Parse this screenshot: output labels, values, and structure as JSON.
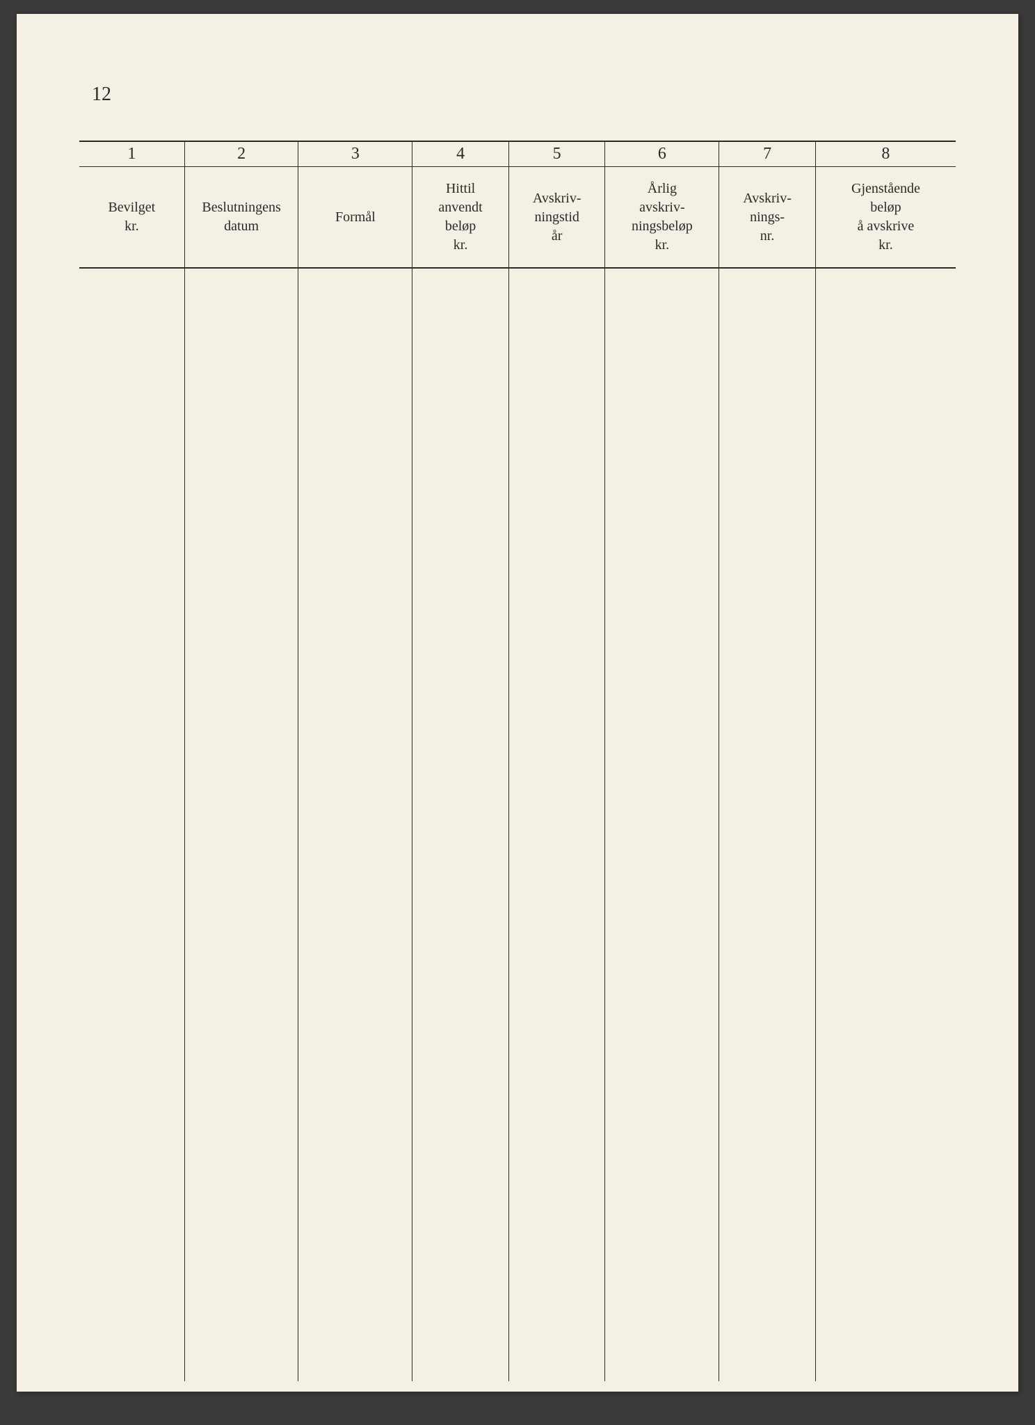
{
  "page_number": "12",
  "table": {
    "column_numbers": [
      "1",
      "2",
      "3",
      "4",
      "5",
      "6",
      "7",
      "8"
    ],
    "headers": [
      "Bevilget\nkr.",
      "Beslutningens\ndatum",
      "Formål",
      "Hittil\nanvendt\nbeløp\nkr.",
      "Avskriv-\nningstid\når",
      "Årlig\navskriv-\nningsbeløp\nkr.",
      "Avskriv-\nnings-\nnr.",
      "Gjenstående\nbeløp\nå avskrive\nkr."
    ],
    "background_color": "#f5f0e4",
    "border_color": "#2a2a2a",
    "text_color": "#2a2a2a",
    "header_fontsize": 20,
    "number_fontsize": 24
  }
}
